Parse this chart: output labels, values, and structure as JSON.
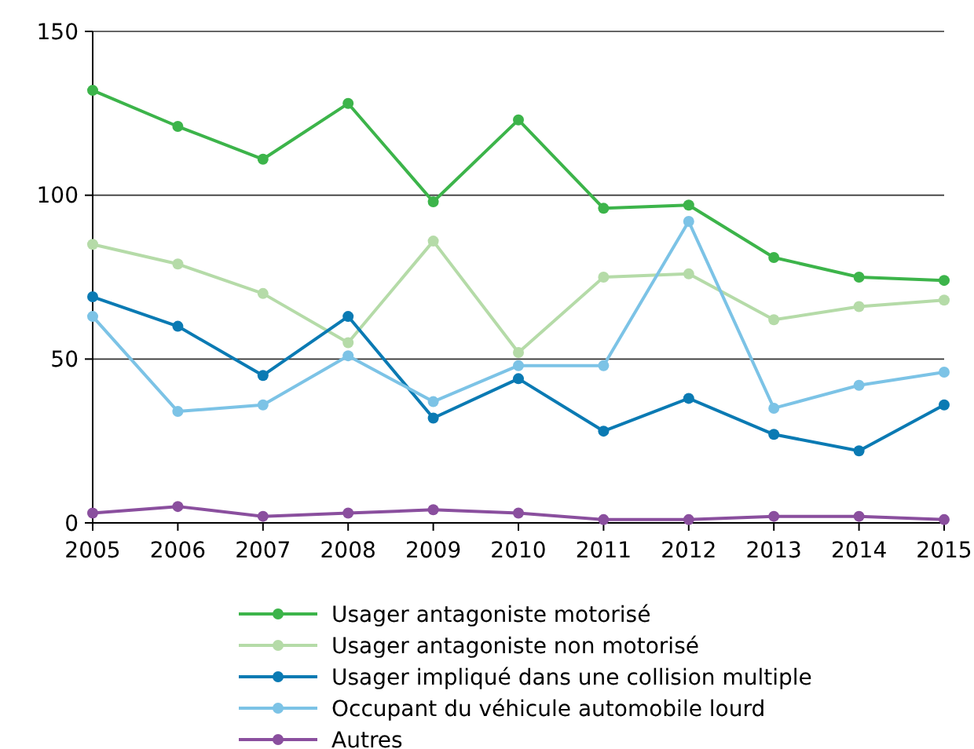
{
  "chart_data": {
    "type": "line",
    "x": [
      2005,
      2006,
      2007,
      2008,
      2009,
      2010,
      2011,
      2012,
      2013,
      2014,
      2015
    ],
    "xlim": [
      2005,
      2015
    ],
    "xticks": [
      2005,
      2006,
      2007,
      2008,
      2009,
      2010,
      2011,
      2012,
      2013,
      2014,
      2015
    ],
    "ylim": [
      0,
      150
    ],
    "yticks": [
      0,
      50,
      100,
      150
    ],
    "grid": "y",
    "legend": "bottom",
    "marker": "circle",
    "line_style": "solid",
    "series": [
      {
        "name": "Usager antagoniste motorisé",
        "color": "#3cb44a",
        "values": [
          132,
          121,
          111,
          128,
          98,
          123,
          96,
          97,
          81,
          75,
          74
        ]
      },
      {
        "name": "Usager antagoniste non motorisé",
        "color": "#b5dba8",
        "values": [
          85,
          79,
          70,
          55,
          86,
          52,
          75,
          76,
          62,
          66,
          68
        ]
      },
      {
        "name": "Usager impliqué dans une collision multiple",
        "color": "#0a7ab3",
        "values": [
          69,
          60,
          45,
          63,
          32,
          44,
          28,
          38,
          27,
          22,
          36
        ]
      },
      {
        "name": "Occupant du véhicule automobile lourd",
        "color": "#7cc3e6",
        "values": [
          63,
          34,
          36,
          51,
          37,
          48,
          48,
          92,
          35,
          42,
          46
        ]
      },
      {
        "name": "Autres",
        "color": "#8a4f9e",
        "values": [
          3,
          5,
          2,
          3,
          4,
          3,
          1,
          1,
          2,
          2,
          1
        ]
      }
    ]
  }
}
